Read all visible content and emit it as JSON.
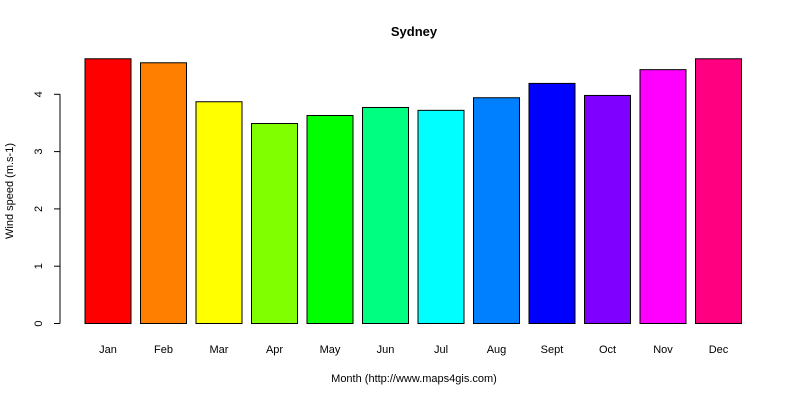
{
  "chart_data": {
    "type": "bar",
    "title": "Sydney",
    "xlabel": "Month (http://www.maps4gis.com)",
    "ylabel": "Wind speed (m.s-1)",
    "categories": [
      "Jan",
      "Feb",
      "Mar",
      "Apr",
      "May",
      "Jun",
      "Jul",
      "Aug",
      "Sept",
      "Oct",
      "Nov",
      "Dec"
    ],
    "values": [
      4.62,
      4.55,
      3.87,
      3.49,
      3.63,
      3.77,
      3.72,
      3.94,
      4.19,
      3.98,
      4.43,
      4.62
    ],
    "colors": [
      "#FF0000",
      "#FF8000",
      "#FFFF00",
      "#80FF00",
      "#00FF00",
      "#00FF80",
      "#00FFFF",
      "#0080FF",
      "#0000FF",
      "#8000FF",
      "#FF00FF",
      "#FF0080"
    ],
    "yticks": [
      0,
      1,
      2,
      3,
      4
    ],
    "ylim": [
      0,
      4.7
    ],
    "grid": false,
    "legend": "none"
  }
}
